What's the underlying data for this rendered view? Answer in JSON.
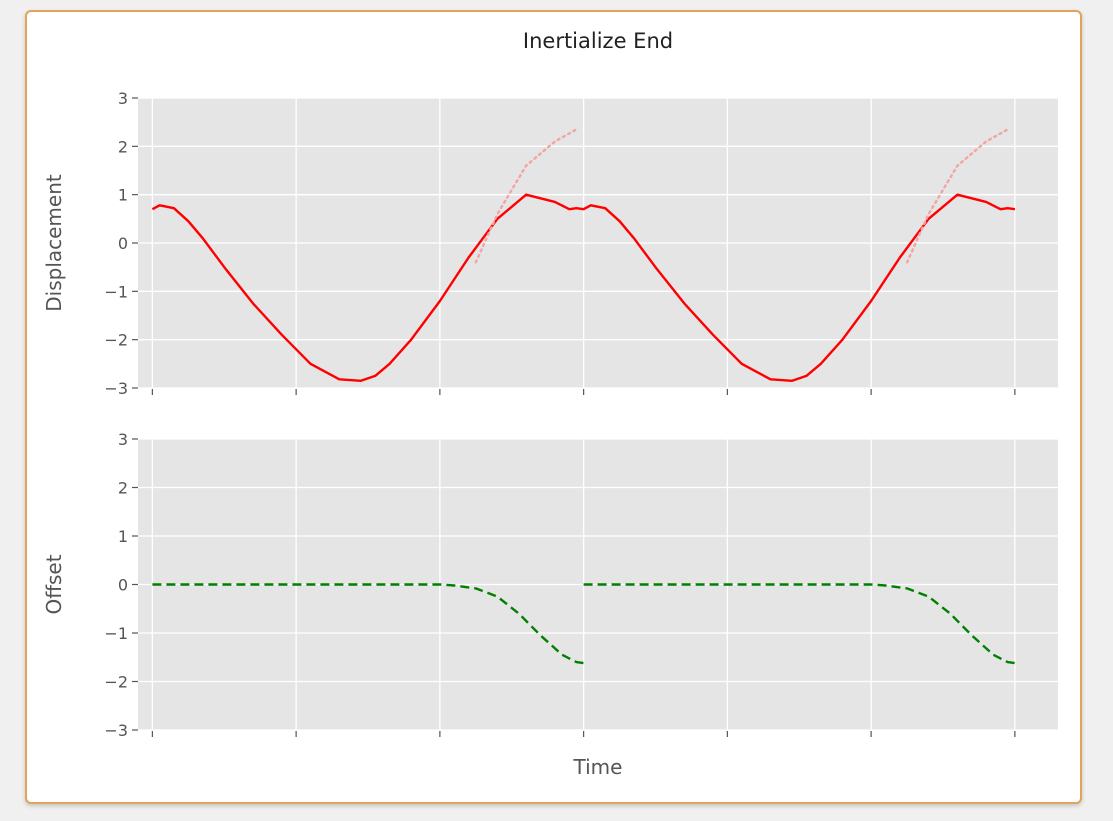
{
  "chart_data": {
    "type": "line",
    "title": "Inertialize End",
    "xlabel": "Time",
    "colors": {
      "plot_bg": "#e5e5e5",
      "grid": "#ffffff",
      "displacement": "#ff0000",
      "ghost": "#f2a5a5",
      "offset": "#008000",
      "card_border": "#e0a35a"
    },
    "x_ticks": [
      0,
      1,
      2,
      3,
      4,
      5,
      6
    ],
    "xlim": [
      -0.1,
      6.3
    ],
    "panels": [
      {
        "ylabel": "Displacement",
        "ylim": [
          -3,
          3
        ],
        "yticks": [
          3,
          2,
          1,
          0,
          -1,
          -2,
          -3
        ],
        "ytick_labels": [
          "3",
          "2",
          "1",
          "0",
          "−1",
          "−2",
          "−3"
        ],
        "grid": true,
        "series": [
          {
            "style": "solid",
            "color": "#ff0000",
            "x": [
              0,
              0.05,
              0.15,
              0.25,
              0.35,
              0.5,
              0.7,
              0.9,
              1.1,
              1.3,
              1.45,
              1.55,
              1.65,
              1.8,
              2.0,
              2.2,
              2.4,
              2.6,
              2.8,
              2.9,
              2.95,
              3.0,
              3.05,
              3.15,
              3.25,
              3.35,
              3.5,
              3.7,
              3.9,
              4.1,
              4.3,
              4.45,
              4.55,
              4.65,
              4.8,
              5.0,
              5.2,
              5.4,
              5.6,
              5.8,
              5.9,
              5.95,
              6.0
            ],
            "y": [
              0.7,
              0.78,
              0.72,
              0.45,
              0.1,
              -0.5,
              -1.25,
              -1.9,
              -2.5,
              -2.82,
              -2.85,
              -2.75,
              -2.5,
              -2.0,
              -1.2,
              -0.3,
              0.5,
              1.0,
              0.85,
              0.7,
              0.72,
              0.7,
              0.78,
              0.72,
              0.45,
              0.1,
              -0.5,
              -1.25,
              -1.9,
              -2.5,
              -2.82,
              -2.85,
              -2.75,
              -2.5,
              -2.0,
              -1.2,
              -0.3,
              0.5,
              1.0,
              0.85,
              0.7,
              0.72,
              0.7
            ]
          },
          {
            "style": "ghost",
            "color": "#f2a5a5",
            "x": [
              2.25,
              2.4,
              2.6,
              2.8,
              2.95
            ],
            "y": [
              -0.4,
              0.6,
              1.6,
              2.1,
              2.35
            ]
          },
          {
            "style": "ghost",
            "color": "#f2a5a5",
            "x": [
              5.25,
              5.4,
              5.6,
              5.8,
              5.95
            ],
            "y": [
              -0.4,
              0.6,
              1.6,
              2.1,
              2.35
            ]
          }
        ]
      },
      {
        "ylabel": "Offset",
        "ylim": [
          -3,
          3
        ],
        "yticks": [
          3,
          2,
          1,
          0,
          -1,
          -2,
          -3
        ],
        "ytick_labels": [
          "3",
          "2",
          "1",
          "0",
          "−1",
          "−2",
          "−3"
        ],
        "grid": true,
        "series": [
          {
            "style": "dashed",
            "color": "#008000",
            "x": [
              0,
              0.5,
              1,
              1.5,
              2,
              2.1,
              2.25,
              2.4,
              2.55,
              2.7,
              2.85,
              2.95,
              3.0
            ],
            "y": [
              0,
              0,
              0,
              0,
              0,
              -0.02,
              -0.08,
              -0.25,
              -0.6,
              -1.05,
              -1.45,
              -1.6,
              -1.62
            ]
          },
          {
            "style": "dashed",
            "color": "#008000",
            "x": [
              3,
              3.5,
              4,
              4.5,
              5,
              5.1,
              5.25,
              5.4,
              5.55,
              5.7,
              5.85,
              5.95,
              6.0
            ],
            "y": [
              0,
              0,
              0,
              0,
              0,
              -0.02,
              -0.08,
              -0.25,
              -0.6,
              -1.05,
              -1.45,
              -1.6,
              -1.62
            ]
          }
        ]
      }
    ]
  }
}
